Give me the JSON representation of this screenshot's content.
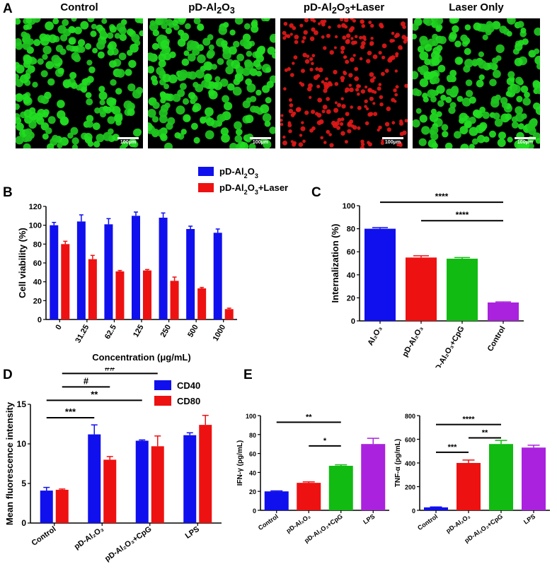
{
  "panels": {
    "A": {
      "letter": "A",
      "images": [
        {
          "title": "Control",
          "color": "#22dd22",
          "scale": "100μm"
        },
        {
          "title_html": "pD-Al<sub>2</sub>O<sub>3</sub>",
          "color": "#22dd22",
          "scale": "100μm"
        },
        {
          "title_html": "pD-Al<sub>2</sub>O<sub>3</sub>+Laser",
          "color": "#e01818",
          "scale": "100μm"
        },
        {
          "title": "Laser Only",
          "color": "#22dd22",
          "scale": "100μm"
        }
      ]
    },
    "B": {
      "letter": "B"
    },
    "C": {
      "letter": "C"
    },
    "D": {
      "letter": "D"
    },
    "E": {
      "letter": "E"
    }
  },
  "chart_data": [
    {
      "id": "B",
      "type": "bar",
      "ylabel": "Cell viability (%)",
      "xlabel": "Concentration (μg/mL)",
      "ylim": [
        0,
        120
      ],
      "yticks": [
        0,
        20,
        40,
        60,
        80,
        100,
        120
      ],
      "categories": [
        "0",
        "31.25",
        "62.5",
        "125",
        "250",
        "500",
        "1000"
      ],
      "legend": [
        {
          "label_html": "pD-Al<tspan baseline-shift='sub' font-size='9'>2</tspan>O<tspan baseline-shift='sub' font-size='9'>3</tspan>",
          "color": "#1010ee"
        },
        {
          "label_html": "pD-Al<tspan baseline-shift='sub' font-size='9'>2</tspan>O<tspan baseline-shift='sub' font-size='9'>3</tspan>+Laser",
          "color": "#ee1111"
        }
      ],
      "series": [
        {
          "color": "#1010ee",
          "values": [
            100,
            104,
            101,
            110,
            108,
            96,
            92
          ],
          "errors": [
            3,
            7,
            6,
            4,
            5,
            3,
            4
          ]
        },
        {
          "color": "#ee1111",
          "values": [
            80,
            64,
            51,
            52,
            41,
            33,
            11
          ],
          "errors": [
            3,
            4,
            1,
            1,
            4,
            1,
            1
          ]
        }
      ]
    },
    {
      "id": "C",
      "type": "bar",
      "ylabel": "Internalization (%)",
      "ylim": [
        0,
        100
      ],
      "yticks": [
        0,
        20,
        40,
        60,
        80,
        100
      ],
      "categories": [
        "Al₂O₃",
        "pD-Al₂O₃",
        "pD-Al₂O₃+CpG",
        "Control"
      ],
      "colors": [
        "#1010ee",
        "#ee1111",
        "#11bb11",
        "#aa22dd"
      ],
      "values": [
        80,
        55,
        54,
        16
      ],
      "errors": [
        1,
        1.5,
        1,
        0.5
      ],
      "brackets": [
        {
          "from": 0,
          "to": 3,
          "y": 103,
          "label": "****"
        },
        {
          "from": 1,
          "to": 3,
          "y": 87,
          "label": "****"
        }
      ]
    },
    {
      "id": "D",
      "type": "bar",
      "ylabel": "Mean fluorescence intensity",
      "ylim": [
        0,
        15
      ],
      "yticks": [
        0,
        5,
        10,
        15
      ],
      "categories": [
        "Control",
        "pD-Al₂O₃",
        "pD-Al₂O₃+CpG",
        "LPS"
      ],
      "legend": [
        {
          "label_html": "CD40",
          "color": "#1010ee"
        },
        {
          "label_html": "CD80",
          "color": "#ee1111"
        }
      ],
      "series": [
        {
          "color": "#1010ee",
          "values": [
            4.1,
            11.2,
            10.4,
            11.1
          ],
          "errors": [
            0.4,
            1.2,
            0.1,
            0.3
          ]
        },
        {
          "color": "#ee1111",
          "values": [
            4.2,
            8.0,
            9.7,
            12.4
          ],
          "errors": [
            0.1,
            0.4,
            1.3,
            1.2
          ]
        }
      ],
      "brackets": [
        {
          "from": 0,
          "to": 1,
          "y": 13.3,
          "label": "***",
          "seriesAnchor": 0
        },
        {
          "from": 0,
          "to": 2,
          "y": 15.5,
          "label": "**",
          "seriesAnchor": 0
        },
        {
          "from": 0,
          "to": 1,
          "y": 17.2,
          "label": "#",
          "seriesAnchor": 1
        },
        {
          "from": 0,
          "to": 2,
          "y": 18.9,
          "label": "##",
          "seriesAnchor": 1
        }
      ]
    },
    {
      "id": "E1",
      "type": "bar",
      "ylabel": "IFN-γ (pg/mL)",
      "ylim": [
        0,
        100
      ],
      "yticks": [
        0,
        20,
        40,
        60,
        80,
        100
      ],
      "categories": [
        "Control",
        "pD-Al₂O₃",
        "pD-Al₂O₃+CpG",
        "LPS"
      ],
      "colors": [
        "#1010ee",
        "#ee1111",
        "#11bb11",
        "#aa22dd"
      ],
      "values": [
        20,
        29,
        47,
        70
      ],
      "errors": [
        0.5,
        1,
        1,
        6
      ],
      "brackets": [
        {
          "from": 0,
          "to": 2,
          "y": 93,
          "label": "**"
        },
        {
          "from": 1,
          "to": 2,
          "y": 68,
          "label": "*"
        }
      ]
    },
    {
      "id": "E2",
      "type": "bar",
      "ylabel": "TNF-α (pg/mL)",
      "ylim": [
        0,
        800
      ],
      "yticks": [
        0,
        200,
        400,
        600,
        800
      ],
      "categories": [
        "Control",
        "pD-Al₂O₃",
        "pD-Al₂O₃+CpG",
        "LPS"
      ],
      "colors": [
        "#1010ee",
        "#ee1111",
        "#11bb11",
        "#aa22dd"
      ],
      "values": [
        25,
        400,
        560,
        530
      ],
      "errors": [
        3,
        25,
        30,
        20
      ],
      "brackets": [
        {
          "from": 0,
          "to": 2,
          "y": 725,
          "label": "****"
        },
        {
          "from": 1,
          "to": 2,
          "y": 612,
          "label": "**"
        },
        {
          "from": 0,
          "to": 1,
          "y": 490,
          "label": "***"
        }
      ]
    }
  ]
}
